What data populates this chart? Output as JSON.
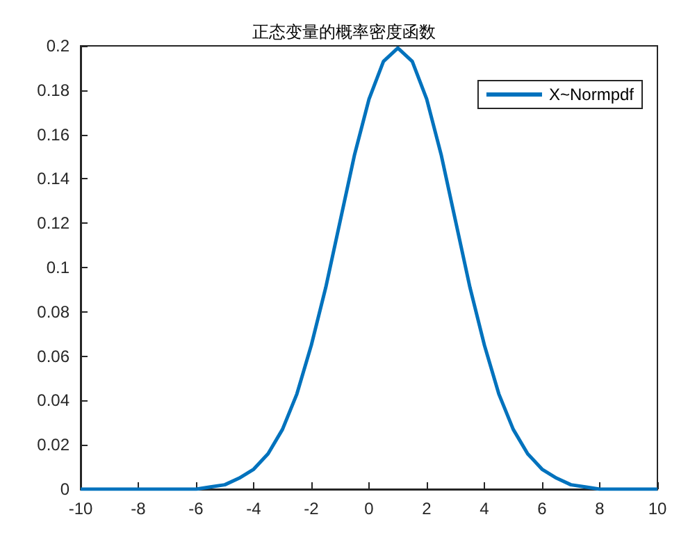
{
  "chart_data": {
    "type": "line",
    "title": "正态变量的概率密度函数",
    "x": [
      -10,
      -9,
      -8,
      -7,
      -6,
      -5.5,
      -5,
      -4.5,
      -4,
      -3.5,
      -3,
      -2.5,
      -2,
      -1.5,
      -1,
      -0.5,
      0,
      0.5,
      1,
      1.5,
      2,
      2.5,
      3,
      3.5,
      4,
      4.5,
      5,
      5.5,
      6,
      6.5,
      7,
      7.5,
      8,
      9,
      10
    ],
    "series": [
      {
        "name": "X~Normpdf",
        "color": "#0072bd",
        "values": [
          0,
          0,
          0,
          0,
          0,
          0.001,
          0.002,
          0.005,
          0.009,
          0.016,
          0.027,
          0.043,
          0.065,
          0.091,
          0.121,
          0.151,
          0.176,
          0.193,
          0.199,
          0.193,
          0.176,
          0.151,
          0.121,
          0.091,
          0.065,
          0.043,
          0.027,
          0.016,
          0.009,
          0.005,
          0.002,
          0.001,
          0,
          0,
          0
        ]
      }
    ],
    "xlim": [
      -10,
      10
    ],
    "xticks": [
      -10,
      -8,
      -6,
      -4,
      -2,
      0,
      2,
      4,
      6,
      8,
      10
    ],
    "ylim": [
      0,
      0.2
    ],
    "yticks": [
      0,
      0.02,
      0.04,
      0.06,
      0.08,
      0.1,
      0.12,
      0.14,
      0.16,
      0.18,
      0.2
    ],
    "grid": false,
    "legend": "top right",
    "marker": "none",
    "line_style": "solid"
  }
}
